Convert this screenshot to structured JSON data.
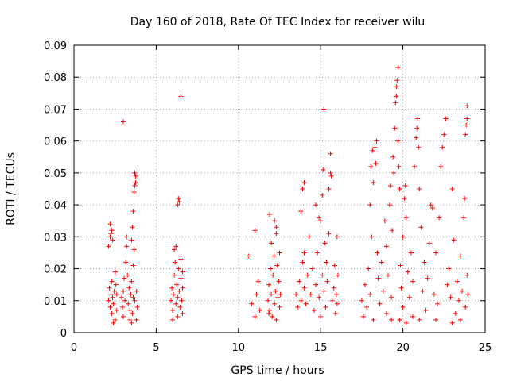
{
  "chart_data": {
    "type": "scatter",
    "title": "Day 160 of 2018, Rate Of TEC Index for receiver wilu",
    "xlabel": "GPS time / hours",
    "ylabel": "ROTI / TECUs",
    "xlim": [
      0,
      25
    ],
    "ylim": [
      0,
      0.09
    ],
    "xticks": [
      0,
      5,
      10,
      15,
      20,
      25
    ],
    "xtick_labels": [
      "0",
      "5",
      "10",
      "15",
      "20",
      "25"
    ],
    "yticks": [
      0,
      0.01,
      0.02,
      0.03,
      0.04,
      0.05,
      0.06,
      0.07,
      0.08,
      0.09
    ],
    "ytick_labels": [
      "0",
      "0.01",
      "0.02",
      "0.03",
      "0.04",
      "0.05",
      "0.06",
      "0.07",
      "0.08",
      "0.09"
    ],
    "grid": true,
    "marker": "+",
    "color": "#ff0000",
    "series": [
      {
        "name": "ROTI",
        "points": [
          [
            2.1,
            0.01
          ],
          [
            2.15,
            0.014
          ],
          [
            2.2,
            0.008
          ],
          [
            2.25,
            0.012
          ],
          [
            2.3,
            0.006
          ],
          [
            2.3,
            0.016
          ],
          [
            2.35,
            0.011
          ],
          [
            2.4,
            0.009
          ],
          [
            2.45,
            0.013
          ],
          [
            2.5,
            0.004
          ],
          [
            2.2,
            0.03
          ],
          [
            2.25,
            0.031
          ],
          [
            2.3,
            0.032
          ],
          [
            2.2,
            0.034
          ],
          [
            2.35,
            0.029
          ],
          [
            2.1,
            0.027
          ],
          [
            2.5,
            0.019
          ],
          [
            2.55,
            0.015
          ],
          [
            2.6,
            0.007
          ],
          [
            2.6,
            0.012
          ],
          [
            2.9,
            0.011
          ],
          [
            2.95,
            0.008
          ],
          [
            3.0,
            0.013
          ],
          [
            3.0,
            0.005
          ],
          [
            3.05,
            0.017
          ],
          [
            3.1,
            0.01
          ],
          [
            3.15,
            0.022
          ],
          [
            3.2,
            0.027
          ],
          [
            3.2,
            0.03
          ],
          [
            3.25,
            0.018
          ],
          [
            3.3,
            0.009
          ],
          [
            3.35,
            0.014
          ],
          [
            3.4,
            0.007
          ],
          [
            3.45,
            0.012
          ],
          [
            3.5,
            0.016
          ],
          [
            3.55,
            0.006
          ],
          [
            3.6,
            0.011
          ],
          [
            3.6,
            0.021
          ],
          [
            3.65,
            0.026
          ],
          [
            3.7,
            0.01
          ],
          [
            3.5,
            0.029
          ],
          [
            3.55,
            0.033
          ],
          [
            3.6,
            0.038
          ],
          [
            3.65,
            0.044
          ],
          [
            3.7,
            0.046
          ],
          [
            3.75,
            0.049
          ],
          [
            3.7,
            0.05
          ],
          [
            3.75,
            0.047
          ],
          [
            3.8,
            0.013
          ],
          [
            3.8,
            0.004
          ],
          [
            3.0,
            0.066
          ],
          [
            3.4,
            0.004
          ],
          [
            3.5,
            0.003
          ],
          [
            2.4,
            0.003
          ],
          [
            3.85,
            0.008
          ],
          [
            5.9,
            0.01
          ],
          [
            5.95,
            0.014
          ],
          [
            6.0,
            0.007
          ],
          [
            6.05,
            0.012
          ],
          [
            6.1,
            0.018
          ],
          [
            6.15,
            0.022
          ],
          [
            6.2,
            0.009
          ],
          [
            6.25,
            0.015
          ],
          [
            6.3,
            0.005
          ],
          [
            6.3,
            0.011
          ],
          [
            6.35,
            0.02
          ],
          [
            6.4,
            0.013
          ],
          [
            6.45,
            0.008
          ],
          [
            6.5,
            0.017
          ],
          [
            6.5,
            0.023
          ],
          [
            6.55,
            0.01
          ],
          [
            6.6,
            0.014
          ],
          [
            6.6,
            0.006
          ],
          [
            6.1,
            0.026
          ],
          [
            6.2,
            0.027
          ],
          [
            6.3,
            0.04
          ],
          [
            6.35,
            0.042
          ],
          [
            6.4,
            0.041
          ],
          [
            6.5,
            0.074
          ],
          [
            6.0,
            0.004
          ],
          [
            6.6,
            0.019
          ],
          [
            10.6,
            0.024
          ],
          [
            10.8,
            0.009
          ],
          [
            11.0,
            0.005
          ],
          [
            11.1,
            0.012
          ],
          [
            11.2,
            0.016
          ],
          [
            11.0,
            0.032
          ],
          [
            11.3,
            0.007
          ],
          [
            11.8,
            0.01
          ],
          [
            11.85,
            0.015
          ],
          [
            11.9,
            0.007
          ],
          [
            11.95,
            0.02
          ],
          [
            12.0,
            0.012
          ],
          [
            12.0,
            0.028
          ],
          [
            12.05,
            0.005
          ],
          [
            12.1,
            0.018
          ],
          [
            12.15,
            0.024
          ],
          [
            12.2,
            0.009
          ],
          [
            12.25,
            0.013
          ],
          [
            12.3,
            0.033
          ],
          [
            12.3,
            0.004
          ],
          [
            12.35,
            0.021
          ],
          [
            12.4,
            0.011
          ],
          [
            12.45,
            0.016
          ],
          [
            12.5,
            0.008
          ],
          [
            12.5,
            0.025
          ],
          [
            11.9,
            0.037
          ],
          [
            12.2,
            0.035
          ],
          [
            12.3,
            0.031
          ],
          [
            12.55,
            0.012
          ],
          [
            11.85,
            0.006
          ],
          [
            13.5,
            0.012
          ],
          [
            13.6,
            0.008
          ],
          [
            13.7,
            0.016
          ],
          [
            13.8,
            0.01
          ],
          [
            13.9,
            0.022
          ],
          [
            14.0,
            0.014
          ],
          [
            14.0,
            0.025
          ],
          [
            14.1,
            0.009
          ],
          [
            14.2,
            0.018
          ],
          [
            13.8,
            0.038
          ],
          [
            13.9,
            0.045
          ],
          [
            14.0,
            0.047
          ],
          [
            14.3,
            0.03
          ],
          [
            14.4,
            0.012
          ],
          [
            14.5,
            0.02
          ],
          [
            14.6,
            0.007
          ],
          [
            14.7,
            0.015
          ],
          [
            14.8,
            0.025
          ],
          [
            14.9,
            0.011
          ],
          [
            15.0,
            0.035
          ],
          [
            15.0,
            0.005
          ],
          [
            15.1,
            0.018
          ],
          [
            15.1,
            0.043
          ],
          [
            15.15,
            0.051
          ],
          [
            15.2,
            0.07
          ],
          [
            15.2,
            0.013
          ],
          [
            15.25,
            0.028
          ],
          [
            15.3,
            0.008
          ],
          [
            15.35,
            0.022
          ],
          [
            15.4,
            0.016
          ],
          [
            15.5,
            0.031
          ],
          [
            15.5,
            0.045
          ],
          [
            15.6,
            0.05
          ],
          [
            15.6,
            0.056
          ],
          [
            15.65,
            0.049
          ],
          [
            15.7,
            0.01
          ],
          [
            15.8,
            0.014
          ],
          [
            15.85,
            0.021
          ],
          [
            15.9,
            0.006
          ],
          [
            15.95,
            0.012
          ],
          [
            16.0,
            0.009
          ],
          [
            16.0,
            0.03
          ],
          [
            16.05,
            0.018
          ],
          [
            14.7,
            0.04
          ],
          [
            14.9,
            0.036
          ],
          [
            17.5,
            0.01
          ],
          [
            17.6,
            0.005
          ],
          [
            17.7,
            0.015
          ],
          [
            17.8,
            0.008
          ],
          [
            17.9,
            0.02
          ],
          [
            18.0,
            0.012
          ],
          [
            18.0,
            0.04
          ],
          [
            18.05,
            0.052
          ],
          [
            18.1,
            0.03
          ],
          [
            18.15,
            0.057
          ],
          [
            18.2,
            0.047
          ],
          [
            18.3,
            0.058
          ],
          [
            18.35,
            0.053
          ],
          [
            18.4,
            0.06
          ],
          [
            18.45,
            0.025
          ],
          [
            18.5,
            0.017
          ],
          [
            18.6,
            0.009
          ],
          [
            18.7,
            0.022
          ],
          [
            18.8,
            0.013
          ],
          [
            18.9,
            0.035
          ],
          [
            19.0,
            0.006
          ],
          [
            19.0,
            0.027
          ],
          [
            19.1,
            0.018
          ],
          [
            19.2,
            0.04
          ],
          [
            19.25,
            0.046
          ],
          [
            19.3,
            0.011
          ],
          [
            19.35,
            0.032
          ],
          [
            19.4,
            0.055
          ],
          [
            19.45,
            0.05
          ],
          [
            19.5,
            0.064
          ],
          [
            19.55,
            0.072
          ],
          [
            19.6,
            0.074
          ],
          [
            19.6,
            0.077
          ],
          [
            19.65,
            0.079
          ],
          [
            19.7,
            0.083
          ],
          [
            19.7,
            0.06
          ],
          [
            19.75,
            0.052
          ],
          [
            19.8,
            0.045
          ],
          [
            19.85,
            0.021
          ],
          [
            19.9,
            0.014
          ],
          [
            20.0,
            0.008
          ],
          [
            20.0,
            0.03
          ],
          [
            20.1,
            0.042
          ],
          [
            20.15,
            0.046
          ],
          [
            20.2,
            0.036
          ],
          [
            20.3,
            0.019
          ],
          [
            20.4,
            0.011
          ],
          [
            20.5,
            0.025
          ],
          [
            20.6,
            0.016
          ],
          [
            20.7,
            0.052
          ],
          [
            20.8,
            0.061
          ],
          [
            20.85,
            0.064
          ],
          [
            20.9,
            0.067
          ],
          [
            20.95,
            0.058
          ],
          [
            21.0,
            0.045
          ],
          [
            21.1,
            0.033
          ],
          [
            21.2,
            0.013
          ],
          [
            21.3,
            0.022
          ],
          [
            21.4,
            0.007
          ],
          [
            21.5,
            0.017
          ],
          [
            21.6,
            0.028
          ],
          [
            21.7,
            0.04
          ],
          [
            21.8,
            0.039
          ],
          [
            21.9,
            0.012
          ],
          [
            22.0,
            0.025
          ],
          [
            22.1,
            0.009
          ],
          [
            22.2,
            0.036
          ],
          [
            22.3,
            0.052
          ],
          [
            22.4,
            0.058
          ],
          [
            22.5,
            0.062
          ],
          [
            22.6,
            0.067
          ],
          [
            22.7,
            0.015
          ],
          [
            22.8,
            0.02
          ],
          [
            22.9,
            0.011
          ],
          [
            23.0,
            0.045
          ],
          [
            23.1,
            0.029
          ],
          [
            23.2,
            0.006
          ],
          [
            23.3,
            0.016
          ],
          [
            23.4,
            0.01
          ],
          [
            23.5,
            0.024
          ],
          [
            23.6,
            0.013
          ],
          [
            23.7,
            0.036
          ],
          [
            23.75,
            0.042
          ],
          [
            23.8,
            0.062
          ],
          [
            23.85,
            0.065
          ],
          [
            23.9,
            0.067
          ],
          [
            23.9,
            0.071
          ],
          [
            23.8,
            0.008
          ],
          [
            23.9,
            0.018
          ],
          [
            23.95,
            0.012
          ],
          [
            18.2,
            0.004
          ],
          [
            19.3,
            0.004
          ],
          [
            20.2,
            0.003
          ],
          [
            21.0,
            0.004
          ],
          [
            22.0,
            0.004
          ],
          [
            23.0,
            0.003
          ],
          [
            23.5,
            0.004
          ],
          [
            20.6,
            0.005
          ],
          [
            19.8,
            0.004
          ]
        ]
      }
    ]
  }
}
